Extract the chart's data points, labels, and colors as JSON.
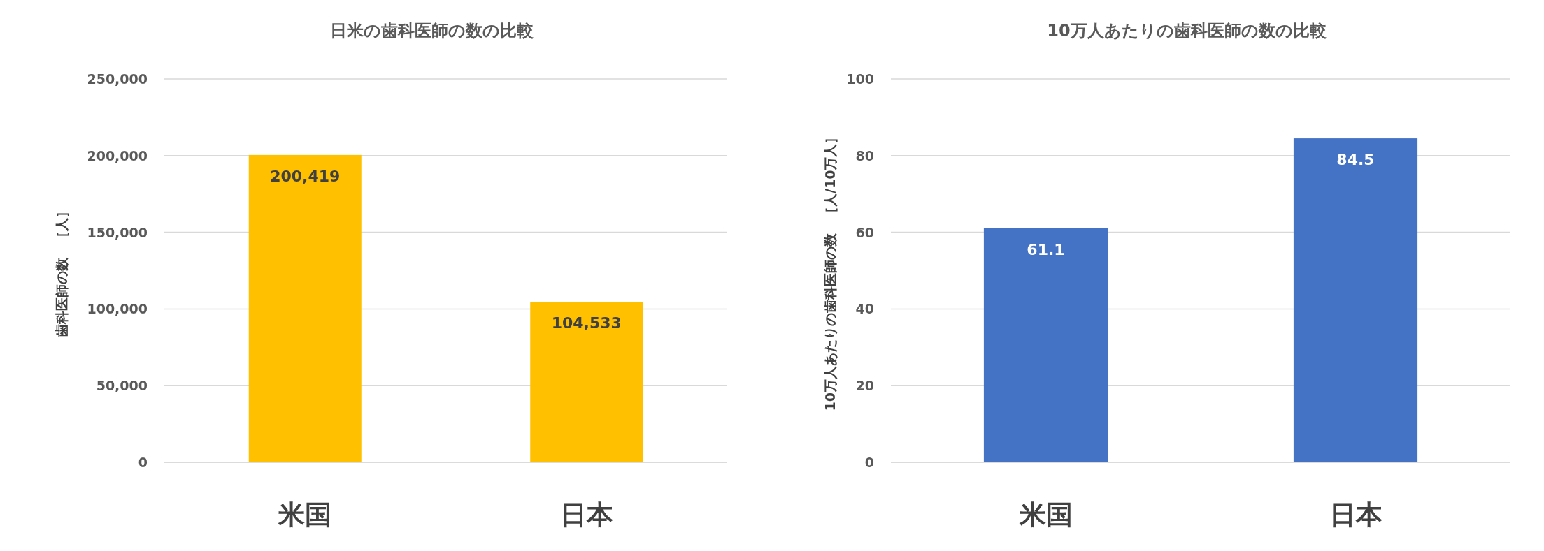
{
  "chart_data": [
    {
      "type": "bar",
      "title": "日米の歯科医師の数の比較",
      "ylabel": "歯科医師の数　［人］",
      "categories": [
        "米国",
        "日本"
      ],
      "values": [
        200419,
        104533
      ],
      "value_labels": [
        "200,419",
        "104,533"
      ],
      "color": "#ffc000",
      "ylim": [
        0,
        250000
      ],
      "yticks": [
        {
          "value": 0,
          "label": "0"
        },
        {
          "value": 50000,
          "label": "50,000"
        },
        {
          "value": 100000,
          "label": "100,000"
        },
        {
          "value": 150000,
          "label": "150,000"
        },
        {
          "value": 200000,
          "label": "200,000"
        },
        {
          "value": 250000,
          "label": "250,000"
        }
      ],
      "grid": "y"
    },
    {
      "type": "bar",
      "title": "10万人あたりの歯科医師の数の比較",
      "ylabel": "10万人あたりの歯科医師の数　［人/10万人］",
      "categories": [
        "米国",
        "日本"
      ],
      "values": [
        61.1,
        84.5
      ],
      "data_labels": true,
      "color": "#4472c4",
      "ylim": [
        0,
        100
      ],
      "yticks": [
        0,
        20,
        40,
        60,
        80,
        100
      ],
      "grid": "y"
    }
  ]
}
